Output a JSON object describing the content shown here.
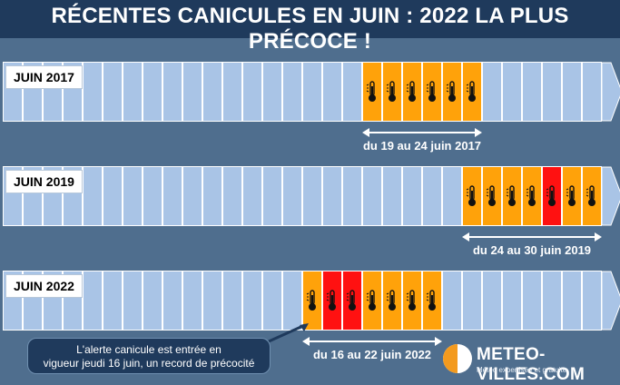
{
  "title": "RÉCENTES CANICULES EN JUIN : 2022 LA PLUS PRÉCOCE !",
  "colors": {
    "background": "#4f6e8e",
    "header": "#1f3a5c",
    "day_normal": "#a9c4e6",
    "day_heatwave": "#ffa20a",
    "day_peak": "#ff1111"
  },
  "icon": "thermometer-icon",
  "rows": [
    {
      "label": "JUIN 2017",
      "heatwave_days": [
        19,
        20,
        21,
        22,
        23,
        24
      ],
      "peak_days": [],
      "range_text": "du 19 au 24 juin 2017"
    },
    {
      "label": "JUIN 2019",
      "heatwave_days": [
        24,
        25,
        26,
        27,
        28,
        29,
        30
      ],
      "peak_days": [
        28
      ],
      "range_text": "du 24 au 30 juin 2019"
    },
    {
      "label": "JUIN 2022",
      "heatwave_days": [
        16,
        17,
        18,
        19,
        20,
        21,
        22
      ],
      "peak_days": [
        17,
        18
      ],
      "range_text": "du 16 au 22 juin 2022"
    }
  ],
  "callout": {
    "line1": "L'alerte canicule  est entrée en",
    "line2": "vigueur jeudi 16 juin, un record de précocité"
  },
  "logo": {
    "name": "METEO-VILLES.COM",
    "tagline": "Météo expertisée et gratuite"
  }
}
